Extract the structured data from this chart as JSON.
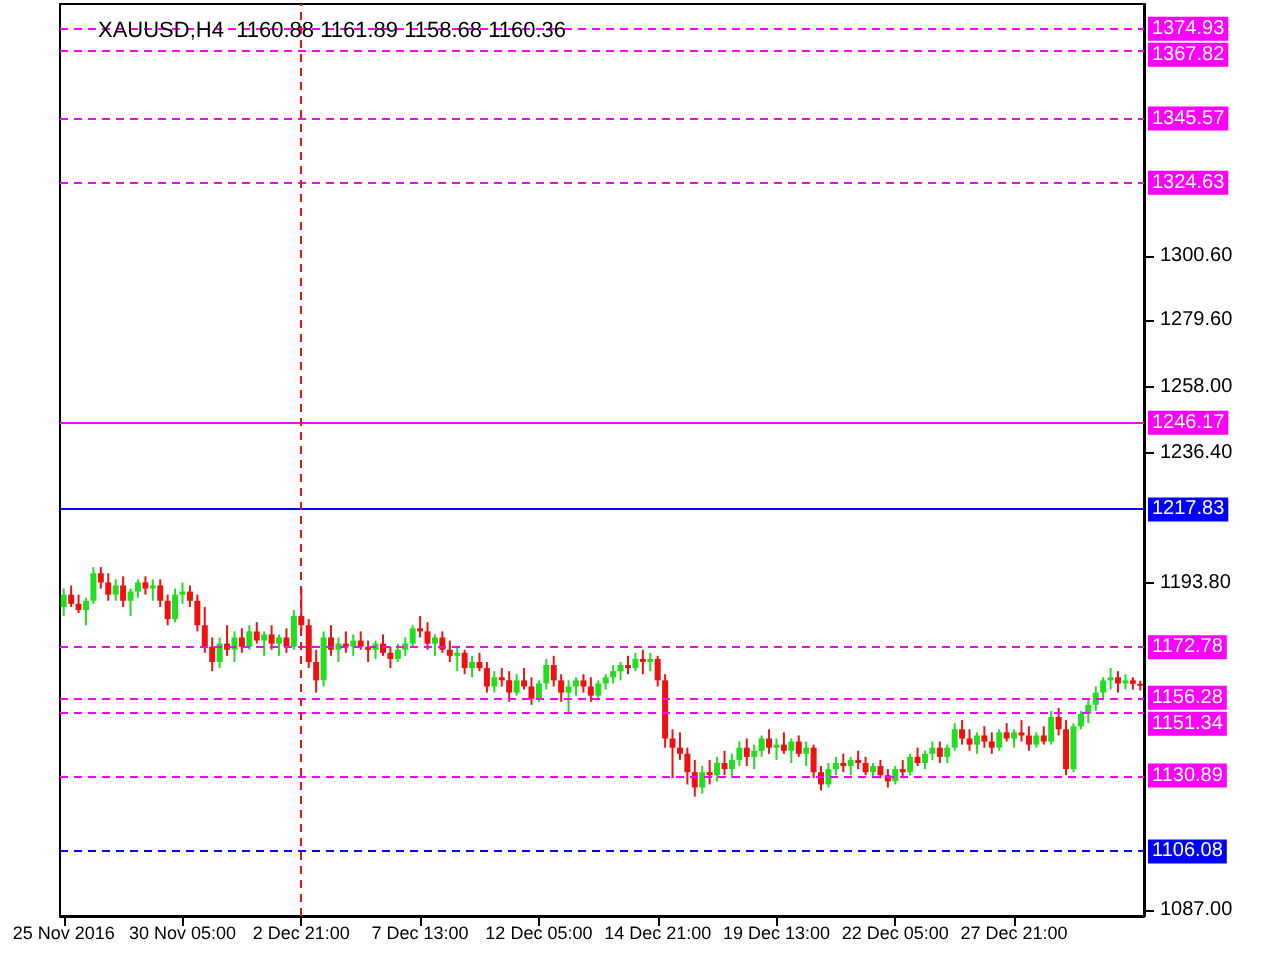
{
  "chart_data": {
    "type": "candlestick",
    "title": "XAUUSD,H4  1160.88 1161.89 1158.68 1160.36",
    "categories": [
      "25 Nov 2016",
      null,
      null,
      null,
      null,
      null,
      null,
      null,
      null,
      null,
      null,
      null,
      null,
      null,
      null,
      null,
      "30 Nov 05:00",
      null,
      null,
      null,
      null,
      null,
      null,
      null,
      null,
      null,
      null,
      null,
      null,
      null,
      null,
      null,
      "2 Dec 21:00",
      null,
      null,
      null,
      null,
      null,
      null,
      null,
      null,
      null,
      null,
      null,
      null,
      null,
      null,
      null,
      "7 Dec 13:00",
      null,
      null,
      null,
      null,
      null,
      null,
      null,
      null,
      null,
      null,
      null,
      null,
      null,
      null,
      null,
      "12 Dec 05:00",
      null,
      null,
      null,
      null,
      null,
      null,
      null,
      null,
      null,
      null,
      null,
      null,
      null,
      null,
      null,
      "14 Dec 21:00",
      null,
      null,
      null,
      null,
      null,
      null,
      null,
      null,
      null,
      null,
      null,
      null,
      null,
      null,
      null,
      "19 Dec 13:00",
      null,
      null,
      null,
      null,
      null,
      null,
      null,
      null,
      null,
      null,
      null,
      null,
      null,
      null,
      null,
      "22 Dec 05:00",
      null,
      null,
      null,
      null,
      null,
      null,
      null,
      null,
      null,
      null,
      null,
      null,
      null,
      null,
      null,
      "27 Dec 21:00",
      null,
      null,
      null,
      null,
      null,
      null,
      null,
      null,
      null,
      null,
      null,
      null,
      null,
      null,
      null,
      null,
      null
    ],
    "ohlc": [
      [
        1186,
        1192,
        1183,
        1190
      ],
      [
        1190,
        1193,
        1186,
        1187
      ],
      [
        1187,
        1190,
        1184,
        1185
      ],
      [
        1185,
        1189,
        1180,
        1188
      ],
      [
        1188,
        1199,
        1187,
        1197
      ],
      [
        1197,
        1199,
        1192,
        1194
      ],
      [
        1194,
        1197,
        1188,
        1190
      ],
      [
        1190,
        1195,
        1188,
        1193
      ],
      [
        1193,
        1196,
        1186,
        1188
      ],
      [
        1188,
        1192,
        1183,
        1191
      ],
      [
        1191,
        1195,
        1189,
        1194
      ],
      [
        1194,
        1196,
        1190,
        1192
      ],
      [
        1192,
        1195,
        1188,
        1193
      ],
      [
        1193,
        1195,
        1186,
        1188
      ],
      [
        1188,
        1190,
        1180,
        1182
      ],
      [
        1182,
        1192,
        1181,
        1190
      ],
      [
        1190,
        1194,
        1187,
        1191
      ],
      [
        1191,
        1193,
        1186,
        1188
      ],
      [
        1188,
        1190,
        1178,
        1180
      ],
      [
        1180,
        1186,
        1171,
        1173
      ],
      [
        1173,
        1176,
        1165,
        1168
      ],
      [
        1168,
        1176,
        1166,
        1174
      ],
      [
        1174,
        1180,
        1170,
        1172
      ],
      [
        1172,
        1178,
        1168,
        1176
      ],
      [
        1176,
        1179,
        1171,
        1173
      ],
      [
        1173,
        1180,
        1172,
        1178
      ],
      [
        1178,
        1181,
        1174,
        1175
      ],
      [
        1175,
        1178,
        1170,
        1177
      ],
      [
        1177,
        1180,
        1172,
        1174
      ],
      [
        1174,
        1177,
        1170,
        1176
      ],
      [
        1176,
        1179,
        1171,
        1173
      ],
      [
        1173,
        1185,
        1172,
        1183
      ],
      [
        1183,
        1192,
        1178,
        1180
      ],
      [
        1180,
        1182,
        1166,
        1168
      ],
      [
        1168,
        1172,
        1158,
        1162
      ],
      [
        1162,
        1178,
        1160,
        1176
      ],
      [
        1176,
        1180,
        1170,
        1172
      ],
      [
        1172,
        1176,
        1168,
        1174
      ],
      [
        1174,
        1178,
        1171,
        1173
      ],
      [
        1173,
        1177,
        1170,
        1175
      ],
      [
        1175,
        1178,
        1172,
        1173
      ],
      [
        1173,
        1175,
        1168,
        1172
      ],
      [
        1172,
        1175,
        1169,
        1174
      ],
      [
        1174,
        1177,
        1170,
        1171
      ],
      [
        1171,
        1173,
        1166,
        1169
      ],
      [
        1169,
        1174,
        1168,
        1172
      ],
      [
        1172,
        1176,
        1170,
        1174
      ],
      [
        1174,
        1180,
        1173,
        1179
      ],
      [
        1179,
        1183,
        1176,
        1178
      ],
      [
        1178,
        1181,
        1172,
        1174
      ],
      [
        1174,
        1177,
        1170,
        1176
      ],
      [
        1176,
        1178,
        1171,
        1172
      ],
      [
        1172,
        1175,
        1168,
        1170
      ],
      [
        1170,
        1173,
        1165,
        1171
      ],
      [
        1171,
        1172,
        1164,
        1166
      ],
      [
        1166,
        1170,
        1163,
        1168
      ],
      [
        1168,
        1171,
        1165,
        1166
      ],
      [
        1166,
        1168,
        1158,
        1160
      ],
      [
        1160,
        1165,
        1158,
        1163
      ],
      [
        1163,
        1166,
        1160,
        1162
      ],
      [
        1162,
        1165,
        1155,
        1158
      ],
      [
        1158,
        1164,
        1157,
        1162
      ],
      [
        1162,
        1166,
        1159,
        1160
      ],
      [
        1160,
        1163,
        1154,
        1156
      ],
      [
        1156,
        1162,
        1155,
        1161
      ],
      [
        1161,
        1169,
        1159,
        1167
      ],
      [
        1167,
        1170,
        1160,
        1162
      ],
      [
        1162,
        1164,
        1155,
        1158
      ],
      [
        1158,
        1162,
        1151,
        1160
      ],
      [
        1160,
        1163,
        1157,
        1162
      ],
      [
        1162,
        1164,
        1158,
        1160
      ],
      [
        1160,
        1163,
        1155,
        1157
      ],
      [
        1157,
        1162,
        1156,
        1161
      ],
      [
        1161,
        1164,
        1159,
        1163
      ],
      [
        1163,
        1167,
        1161,
        1165
      ],
      [
        1165,
        1168,
        1162,
        1167
      ],
      [
        1167,
        1170,
        1164,
        1166
      ],
      [
        1166,
        1171,
        1165,
        1169
      ],
      [
        1169,
        1172,
        1164,
        1168
      ],
      [
        1168,
        1171,
        1165,
        1169
      ],
      [
        1169,
        1170,
        1160,
        1162
      ],
      [
        1162,
        1164,
        1140,
        1143
      ],
      [
        1143,
        1146,
        1130,
        1140
      ],
      [
        1140,
        1145,
        1136,
        1138
      ],
      [
        1138,
        1140,
        1128,
        1132
      ],
      [
        1132,
        1136,
        1124,
        1127
      ],
      [
        1127,
        1134,
        1125,
        1132
      ],
      [
        1132,
        1136,
        1128,
        1131
      ],
      [
        1131,
        1137,
        1129,
        1135
      ],
      [
        1135,
        1139,
        1131,
        1133
      ],
      [
        1133,
        1138,
        1130,
        1136
      ],
      [
        1136,
        1142,
        1134,
        1140
      ],
      [
        1140,
        1143,
        1134,
        1137
      ],
      [
        1137,
        1141,
        1133,
        1139
      ],
      [
        1139,
        1144,
        1137,
        1143
      ],
      [
        1143,
        1146,
        1138,
        1140
      ],
      [
        1140,
        1143,
        1136,
        1141
      ],
      [
        1141,
        1145,
        1138,
        1139
      ],
      [
        1139,
        1143,
        1135,
        1142
      ],
      [
        1142,
        1144,
        1137,
        1138
      ],
      [
        1138,
        1142,
        1134,
        1140
      ],
      [
        1140,
        1141,
        1130,
        1132
      ],
      [
        1132,
        1134,
        1126,
        1128
      ],
      [
        1128,
        1135,
        1127,
        1133
      ],
      [
        1133,
        1137,
        1131,
        1135
      ],
      [
        1135,
        1138,
        1132,
        1134
      ],
      [
        1134,
        1137,
        1131,
        1136
      ],
      [
        1136,
        1139,
        1133,
        1135
      ],
      [
        1135,
        1137,
        1131,
        1132
      ],
      [
        1132,
        1135,
        1130,
        1134
      ],
      [
        1134,
        1136,
        1130,
        1131
      ],
      [
        1131,
        1133,
        1127,
        1129
      ],
      [
        1129,
        1134,
        1128,
        1133
      ],
      [
        1133,
        1136,
        1130,
        1132
      ],
      [
        1132,
        1138,
        1131,
        1137
      ],
      [
        1137,
        1140,
        1134,
        1135
      ],
      [
        1135,
        1139,
        1133,
        1138
      ],
      [
        1138,
        1142,
        1136,
        1140
      ],
      [
        1140,
        1142,
        1135,
        1137
      ],
      [
        1137,
        1141,
        1135,
        1140
      ],
      [
        1140,
        1148,
        1139,
        1146
      ],
      [
        1146,
        1149,
        1141,
        1143
      ],
      [
        1143,
        1146,
        1139,
        1141
      ],
      [
        1141,
        1145,
        1138,
        1144
      ],
      [
        1144,
        1147,
        1140,
        1142
      ],
      [
        1142,
        1145,
        1138,
        1140
      ],
      [
        1140,
        1146,
        1139,
        1145
      ],
      [
        1145,
        1148,
        1142,
        1143
      ],
      [
        1143,
        1146,
        1140,
        1145
      ],
      [
        1145,
        1149,
        1142,
        1144
      ],
      [
        1144,
        1147,
        1139,
        1141
      ],
      [
        1141,
        1145,
        1140,
        1144
      ],
      [
        1144,
        1147,
        1141,
        1142
      ],
      [
        1142,
        1152,
        1141,
        1150
      ],
      [
        1150,
        1153,
        1144,
        1146
      ],
      [
        1146,
        1149,
        1131,
        1133
      ],
      [
        1133,
        1148,
        1132,
        1147
      ],
      [
        1147,
        1152,
        1146,
        1151
      ],
      [
        1151,
        1156,
        1148,
        1154
      ],
      [
        1154,
        1160,
        1152,
        1158
      ],
      [
        1158,
        1163,
        1156,
        1162
      ],
      [
        1162,
        1166,
        1159,
        1163
      ],
      [
        1163,
        1165,
        1158,
        1161
      ],
      [
        1161,
        1164,
        1159,
        1162
      ],
      [
        1162,
        1163,
        1159,
        1160.88
      ],
      [
        1160.88,
        1161.89,
        1158.68,
        1160.36
      ]
    ],
    "colors": [
      "#22dd22",
      "#ee1111",
      "#ee1111",
      "#22dd22",
      "#22dd22",
      "#ee1111",
      "#ee1111",
      "#22dd22",
      "#ee1111",
      "#22dd22",
      "#22dd22",
      "#ee1111",
      "#22dd22",
      "#ee1111",
      "#ee1111",
      "#22dd22",
      "#22dd22",
      "#ee1111",
      "#ee1111",
      "#ee1111",
      "#ee1111",
      "#22dd22",
      "#ee1111",
      "#22dd22",
      "#ee1111",
      "#22dd22",
      "#ee1111",
      "#22dd22",
      "#ee1111",
      "#22dd22",
      "#ee1111",
      "#22dd22",
      "#ee1111",
      "#ee1111",
      "#ee1111",
      "#22dd22",
      "#ee1111",
      "#22dd22",
      "#ee1111",
      "#22dd22",
      "#ee1111",
      "#ee1111",
      "#22dd22",
      "#ee1111",
      "#ee1111",
      "#22dd22",
      "#22dd22",
      "#22dd22",
      "#ee1111",
      "#ee1111",
      "#22dd22",
      "#ee1111",
      "#ee1111",
      "#22dd22",
      "#ee1111",
      "#22dd22",
      "#ee1111",
      "#ee1111",
      "#22dd22",
      "#ee1111",
      "#ee1111",
      "#22dd22",
      "#ee1111",
      "#ee1111",
      "#22dd22",
      "#22dd22",
      "#ee1111",
      "#ee1111",
      "#22dd22",
      "#22dd22",
      "#ee1111",
      "#ee1111",
      "#22dd22",
      "#22dd22",
      "#22dd22",
      "#22dd22",
      "#ee1111",
      "#22dd22",
      "#ee1111",
      "#22dd22",
      "#ee1111",
      "#ee1111",
      "#ee1111",
      "#ee1111",
      "#ee1111",
      "#ee1111",
      "#22dd22",
      "#ee1111",
      "#22dd22",
      "#ee1111",
      "#22dd22",
      "#22dd22",
      "#ee1111",
      "#22dd22",
      "#22dd22",
      "#ee1111",
      "#22dd22",
      "#ee1111",
      "#22dd22",
      "#ee1111",
      "#22dd22",
      "#ee1111",
      "#ee1111",
      "#22dd22",
      "#22dd22",
      "#ee1111",
      "#22dd22",
      "#ee1111",
      "#ee1111",
      "#22dd22",
      "#ee1111",
      "#ee1111",
      "#22dd22",
      "#ee1111",
      "#22dd22",
      "#ee1111",
      "#22dd22",
      "#22dd22",
      "#ee1111",
      "#22dd22",
      "#22dd22",
      "#ee1111",
      "#ee1111",
      "#22dd22",
      "#ee1111",
      "#ee1111",
      "#22dd22",
      "#ee1111",
      "#22dd22",
      "#ee1111",
      "#ee1111",
      "#22dd22",
      "#ee1111",
      "#22dd22",
      "#ee1111",
      "#ee1111",
      "#22dd22",
      "#22dd22",
      "#22dd22",
      "#22dd22",
      "#22dd22",
      "#22dd22",
      "#ee1111",
      "#22dd22",
      "#ee1111",
      "#ee1111"
    ],
    "ylim": [
      1085,
      1383
    ],
    "yticks": [
      {
        "value": 1087,
        "label": "1087.00"
      },
      {
        "value": 1193.8,
        "label": "1193.80"
      },
      {
        "value": 1236.4,
        "label": "1236.40"
      },
      {
        "value": 1258,
        "label": "1258.00"
      },
      {
        "value": 1279.6,
        "label": "1279.60"
      },
      {
        "value": 1300.6,
        "label": "1300.60"
      }
    ],
    "ref_lines": [
      {
        "axis": "y",
        "value": 1374.93,
        "label": "1374.93",
        "color": "#ff00ff",
        "line_style": "dashed"
      },
      {
        "axis": "y",
        "value": 1367.82,
        "label": "1367.82",
        "color": "#ff00ff",
        "line_style": "dashed"
      },
      {
        "axis": "y",
        "value": 1345.57,
        "label": "1345.57",
        "color": "#ff00ff",
        "line_style": "dashed"
      },
      {
        "axis": "y",
        "value": 1324.63,
        "label": "1324.63",
        "color": "#ff00ff",
        "line_style": "dashed"
      },
      {
        "axis": "y",
        "value": 1246.17,
        "label": "1246.17",
        "color": "#ff00ff",
        "line_style": "solid"
      },
      {
        "axis": "y",
        "value": 1217.83,
        "label": "1217.83",
        "color": "#0000ff",
        "line_style": "solid"
      },
      {
        "axis": "y",
        "value": 1172.78,
        "label": "1172.78",
        "color": "#ff00ff",
        "line_style": "dashed"
      },
      {
        "axis": "y",
        "value": 1156.28,
        "label": "1156.28",
        "color": "#ff00ff",
        "line_style": "dashed"
      },
      {
        "axis": "y",
        "value": 1151.34,
        "label": "1151.34",
        "color": "#ff00ff",
        "line_style": "dashed"
      },
      {
        "axis": "y",
        "value": 1130.89,
        "label": "1130.89",
        "color": "#ff00ff",
        "line_style": "dashed"
      },
      {
        "axis": "y",
        "value": 1106.08,
        "label": "1106.08",
        "color": "#0000ff",
        "line_style": "dashed"
      },
      {
        "axis": "x",
        "value": "2 Dec 21:00",
        "label": null,
        "color": "#ee1111",
        "line_style": "dashed"
      }
    ]
  }
}
